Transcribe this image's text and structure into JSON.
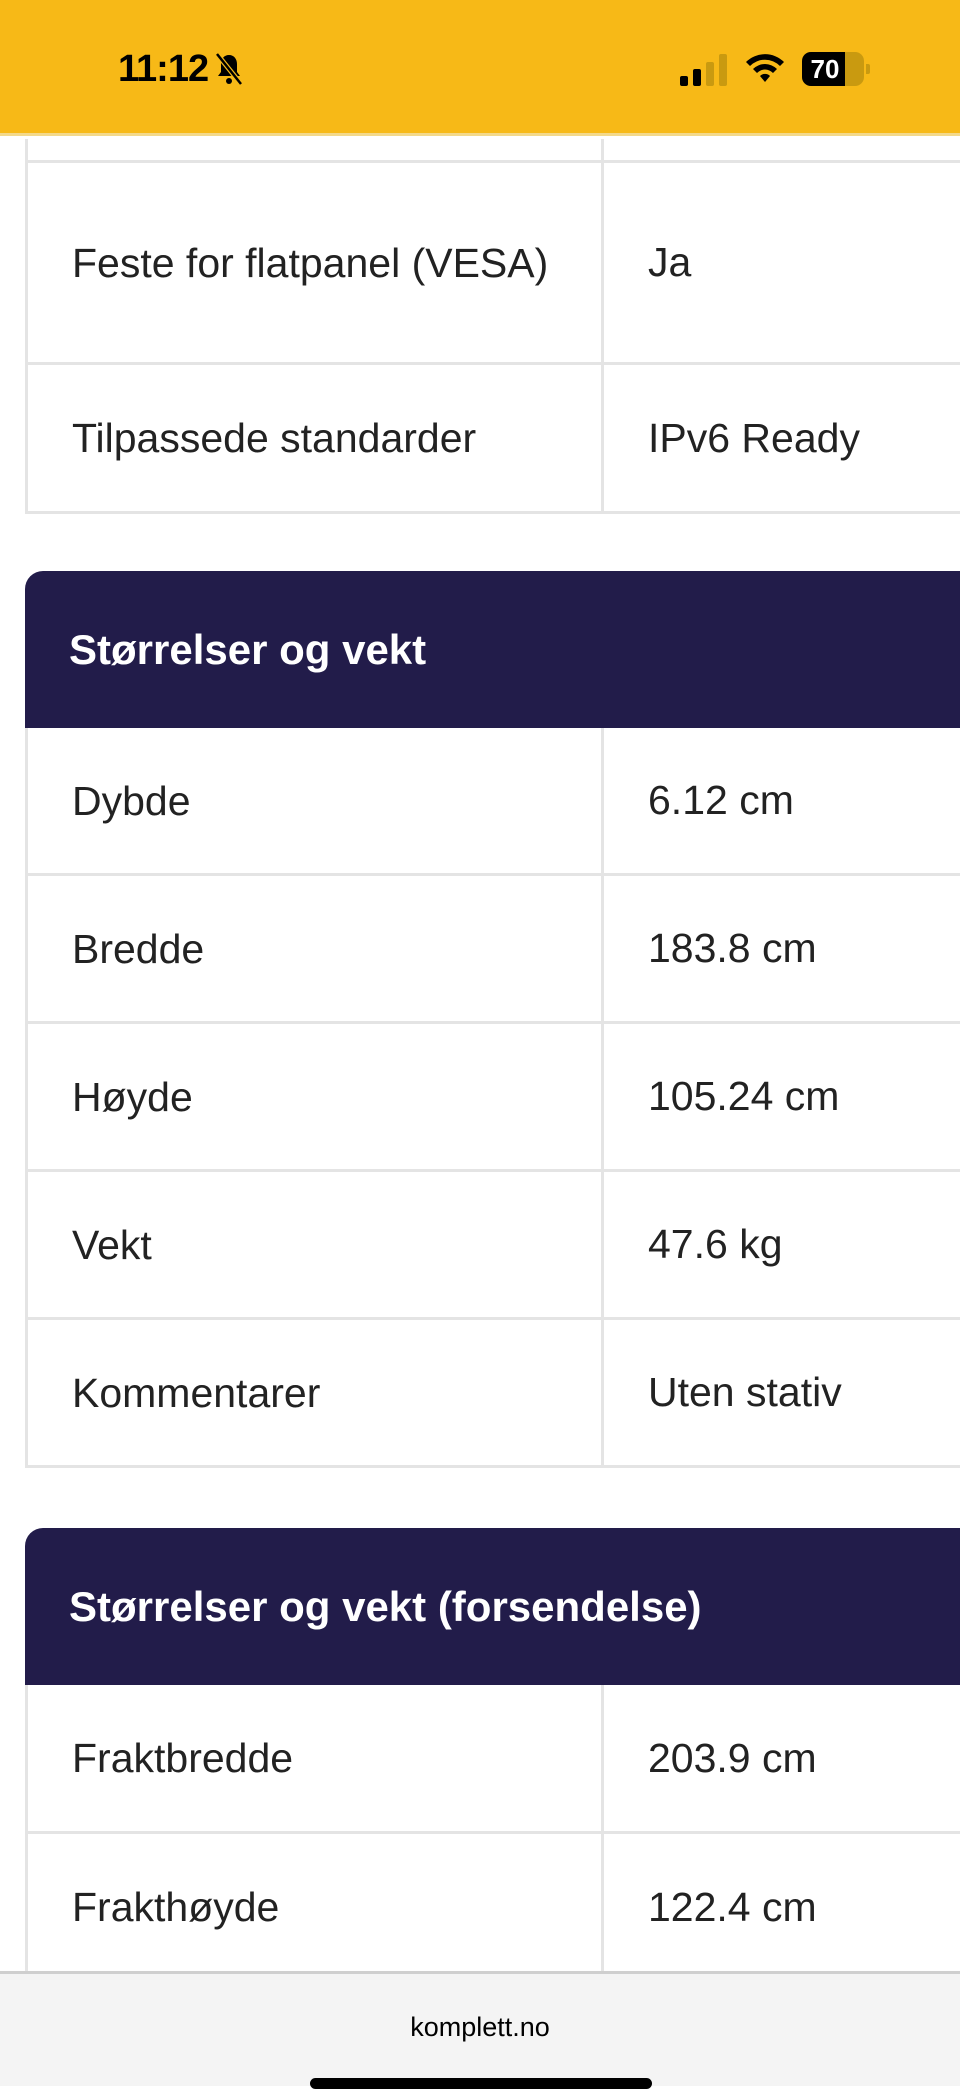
{
  "status_bar": {
    "time": "11:12",
    "battery": "70",
    "battery_level": 0.7
  },
  "top_table": [
    {
      "label": "Feste for flatpanel (VESA)",
      "value": "Ja"
    },
    {
      "label": "Tilpassede standarder",
      "value": "IPv6 Ready"
    }
  ],
  "sections": [
    {
      "title": "Størrelser og vekt",
      "rows": [
        {
          "label": "Dybde",
          "value": "6.12 cm"
        },
        {
          "label": "Bredde",
          "value": "183.8 cm"
        },
        {
          "label": "Høyde",
          "value": "105.24 cm"
        },
        {
          "label": "Vekt",
          "value": "47.6 kg"
        },
        {
          "label": "Kommentarer",
          "value": "Uten stativ"
        }
      ]
    },
    {
      "title": "Størrelser og vekt (forsendelse)",
      "rows": [
        {
          "label": "Fraktbredde",
          "value": "203.9 cm"
        },
        {
          "label": "Frakthøyde",
          "value": "122.4 cm"
        }
      ]
    }
  ],
  "browser": {
    "url": "komplett.no"
  },
  "colors": {
    "status_bar": "#f7b917",
    "section_header": "#221c4a"
  }
}
